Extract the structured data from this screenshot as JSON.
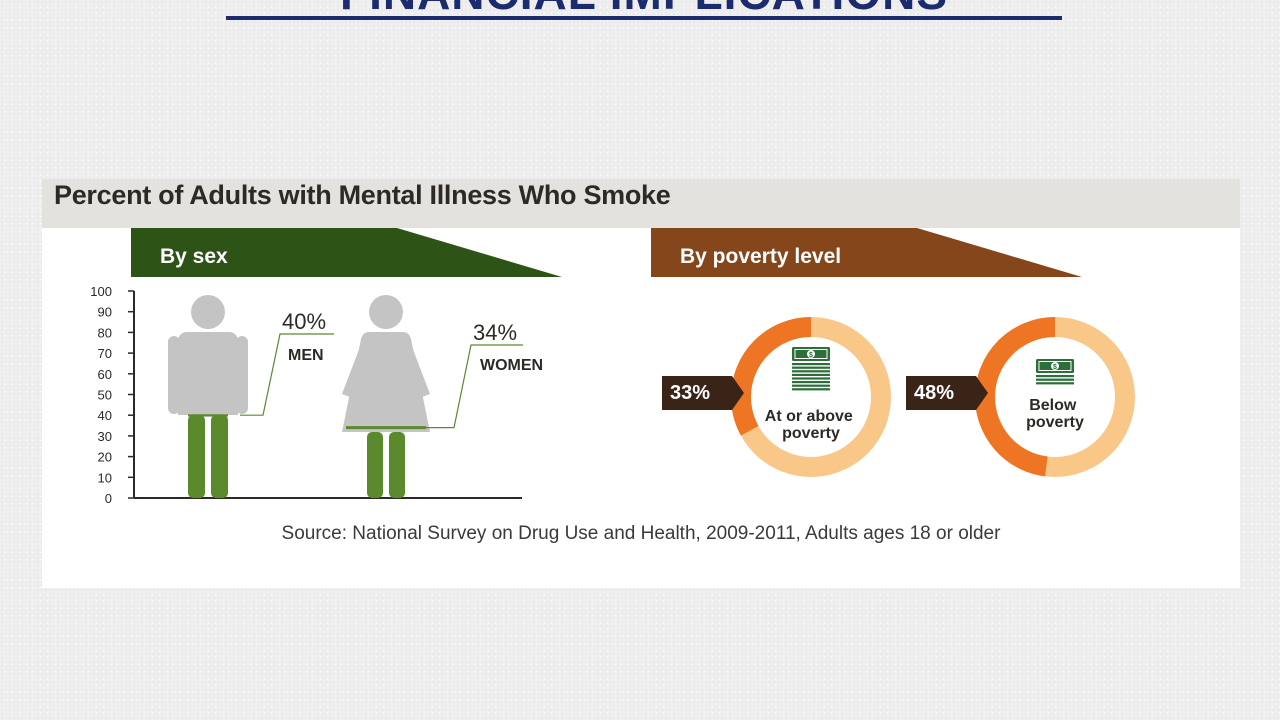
{
  "slide": {
    "title": "FINANCIAL IMPLICATIONS"
  },
  "colors": {
    "sex_header": "#2e5316",
    "poverty_header": "#85461b",
    "figure_gray": "#c4c4c4",
    "smoker_green": "#5b8a2c",
    "donut_orange": "#ee7523",
    "donut_light": "#f9c889",
    "tag_dark": "#3a2418",
    "money_green": "#2d6e3a"
  },
  "chart_data": [
    {
      "type": "bar",
      "title": "Percent of Adults with Mental Illness Who Smoke",
      "subtitle": "By sex",
      "categories": [
        "MEN",
        "WOMEN"
      ],
      "values": [
        40,
        34
      ],
      "value_labels": [
        "40%",
        "34%"
      ],
      "ylim": [
        0,
        100
      ],
      "yticks": [
        0,
        10,
        20,
        30,
        40,
        50,
        60,
        70,
        80,
        90,
        100
      ],
      "ytick_labels": [
        "0",
        "10",
        "20",
        "30",
        "40",
        "50",
        "60",
        "70",
        "80",
        "90",
        "100"
      ],
      "grid": false
    },
    {
      "type": "pie",
      "subtitle": "By poverty level",
      "categories": [
        "At or above poverty",
        "Below poverty"
      ],
      "values": [
        33,
        48
      ],
      "value_labels": [
        "33%",
        "48%"
      ]
    }
  ],
  "source": "Source: National Survey on Drug Use and Health, 2009-2011, Adults ages 18 or older"
}
